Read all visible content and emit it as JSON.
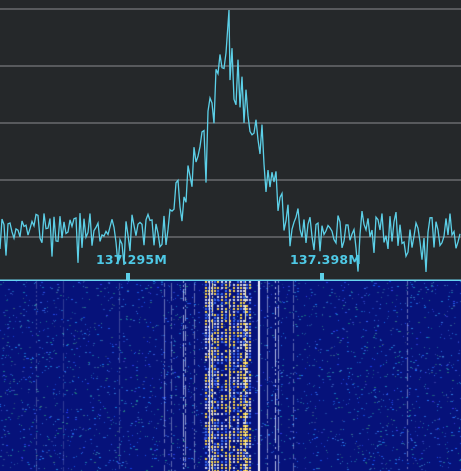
{
  "spectrum": {
    "frequency_labels": [
      {
        "text": "137.295M",
        "freq_mhz": 137.295
      },
      {
        "text": "137.398M",
        "freq_mhz": 137.398
      }
    ],
    "trace_color": "#5cd0e8",
    "grid_color": "#8a8d90",
    "background_color": "#25282a",
    "center_frequency_mhz": 137.347,
    "peak_frequency_mhz": 137.347
  },
  "waterfall": {
    "background_color": "#06127a",
    "signal_color": "#ffd84a",
    "noise_color": "#2a58d8"
  }
}
